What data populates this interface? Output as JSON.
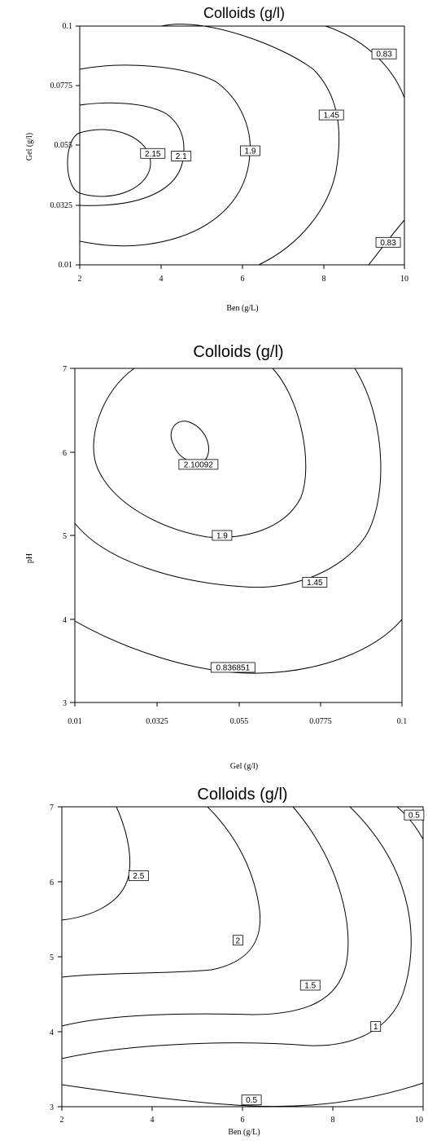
{
  "chart_data": [
    {
      "type": "contour",
      "title": "Colloids (g/l)",
      "xlabel": "Ben (g/L)",
      "ylabel": "Gel (g/l)",
      "xlim": [
        2,
        10
      ],
      "ylim": [
        0.01,
        0.1
      ],
      "x_ticks": [
        "2",
        "4",
        "6",
        "8",
        "10"
      ],
      "y_ticks": [
        "0.01",
        "0.0325",
        "0.055",
        "0.0775",
        "0.1"
      ],
      "contour_labels": [
        {
          "text": "2.15",
          "x": 3.8,
          "y": 0.052
        },
        {
          "text": "2.1",
          "x": 4.5,
          "y": 0.051
        },
        {
          "text": "1.9",
          "x": 6.2,
          "y": 0.053
        },
        {
          "text": "1.45",
          "x": 8.2,
          "y": 0.0665
        },
        {
          "text": "0.83",
          "x": 9.5,
          "y": 0.0895
        },
        {
          "text": "0.83",
          "x": 9.6,
          "y": 0.0185
        }
      ]
    },
    {
      "type": "contour",
      "title": "Colloids (g/l)",
      "xlabel": "Gel (g/l)",
      "ylabel": "pH",
      "xlim": [
        0.01,
        0.1
      ],
      "ylim": [
        3,
        7
      ],
      "x_ticks": [
        "0.01",
        "0.0325",
        "0.055",
        "0.0775",
        "0.1"
      ],
      "y_ticks": [
        "3",
        "4",
        "5",
        "6",
        "7"
      ],
      "contour_labels": [
        {
          "text": "2.10092",
          "x": 0.044,
          "y": 5.85
        },
        {
          "text": "1.9",
          "x": 0.0505,
          "y": 5.0
        },
        {
          "text": "1.45",
          "x": 0.076,
          "y": 4.44
        },
        {
          "text": "0.836851",
          "x": 0.0535,
          "y": 3.42
        }
      ]
    },
    {
      "type": "contour",
      "title": "Colloids (g/l)",
      "xlabel": "Ben (g/L)",
      "ylabel": "",
      "xlim": [
        2,
        10
      ],
      "ylim": [
        3,
        7
      ],
      "x_ticks": [
        "2",
        "4",
        "6",
        "8",
        "10"
      ],
      "y_ticks": [
        "3",
        "4",
        "5",
        "6",
        "7"
      ],
      "contour_labels": [
        {
          "text": "2.5",
          "x": 3.7,
          "y": 6.08
        },
        {
          "text": "2",
          "x": 5.9,
          "y": 5.22
        },
        {
          "text": "1.5",
          "x": 7.5,
          "y": 4.62
        },
        {
          "text": "1",
          "x": 8.95,
          "y": 4.07
        },
        {
          "text": "0.5",
          "x": 9.8,
          "y": 6.89
        },
        {
          "text": "0.5",
          "x": 6.2,
          "y": 3.09
        }
      ]
    }
  ]
}
